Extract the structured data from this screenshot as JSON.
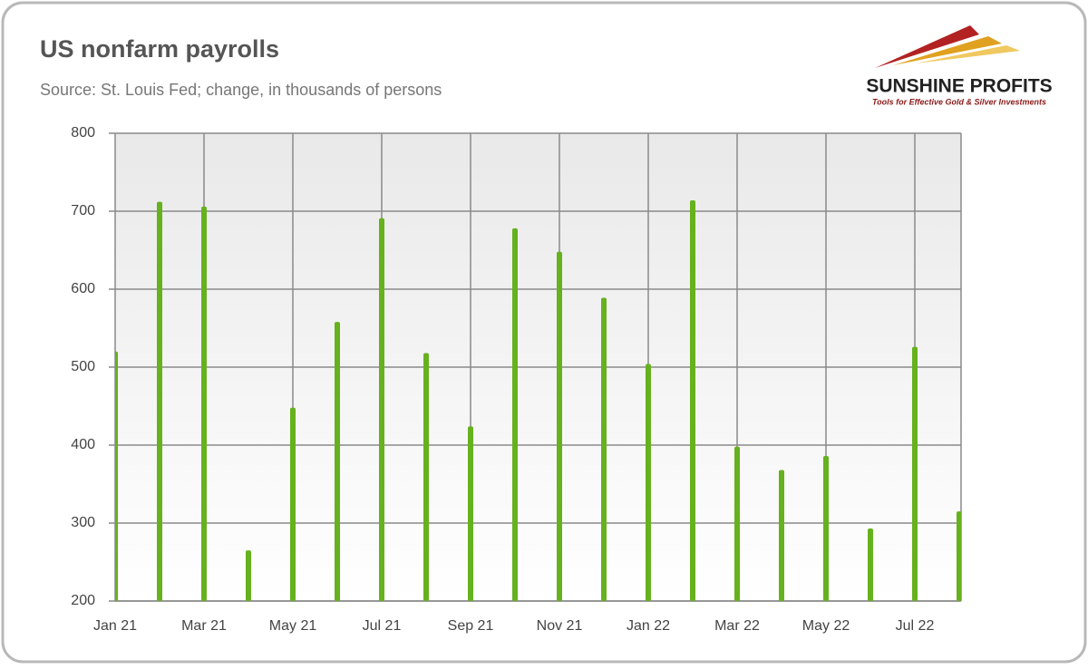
{
  "chart_data": {
    "type": "bar",
    "title": "US nonfarm payrolls",
    "subtitle": "Source: St. Louis Fed; change, in thousands of persons",
    "categories": [
      "Jan 21",
      null,
      "Mar 21",
      null,
      "May 21",
      null,
      "Jul 21",
      null,
      "Sep 21",
      null,
      "Nov 21",
      null,
      "Jan 22",
      null,
      "Mar 22",
      null,
      "May 22",
      null,
      "Jul 22",
      null
    ],
    "values": [
      520,
      712,
      706,
      265,
      448,
      558,
      691,
      518,
      424,
      678,
      648,
      589,
      504,
      714,
      398,
      368,
      386,
      293,
      526,
      315
    ],
    "color": "#66b11e",
    "ylim": [
      200,
      800
    ],
    "yticks": [
      200,
      300,
      400,
      500,
      600,
      700,
      800
    ],
    "grid": true
  },
  "logo": {
    "name": "SUNSHINE PROFITS",
    "tagline": "Tools for Effective Gold & Silver Investments"
  }
}
